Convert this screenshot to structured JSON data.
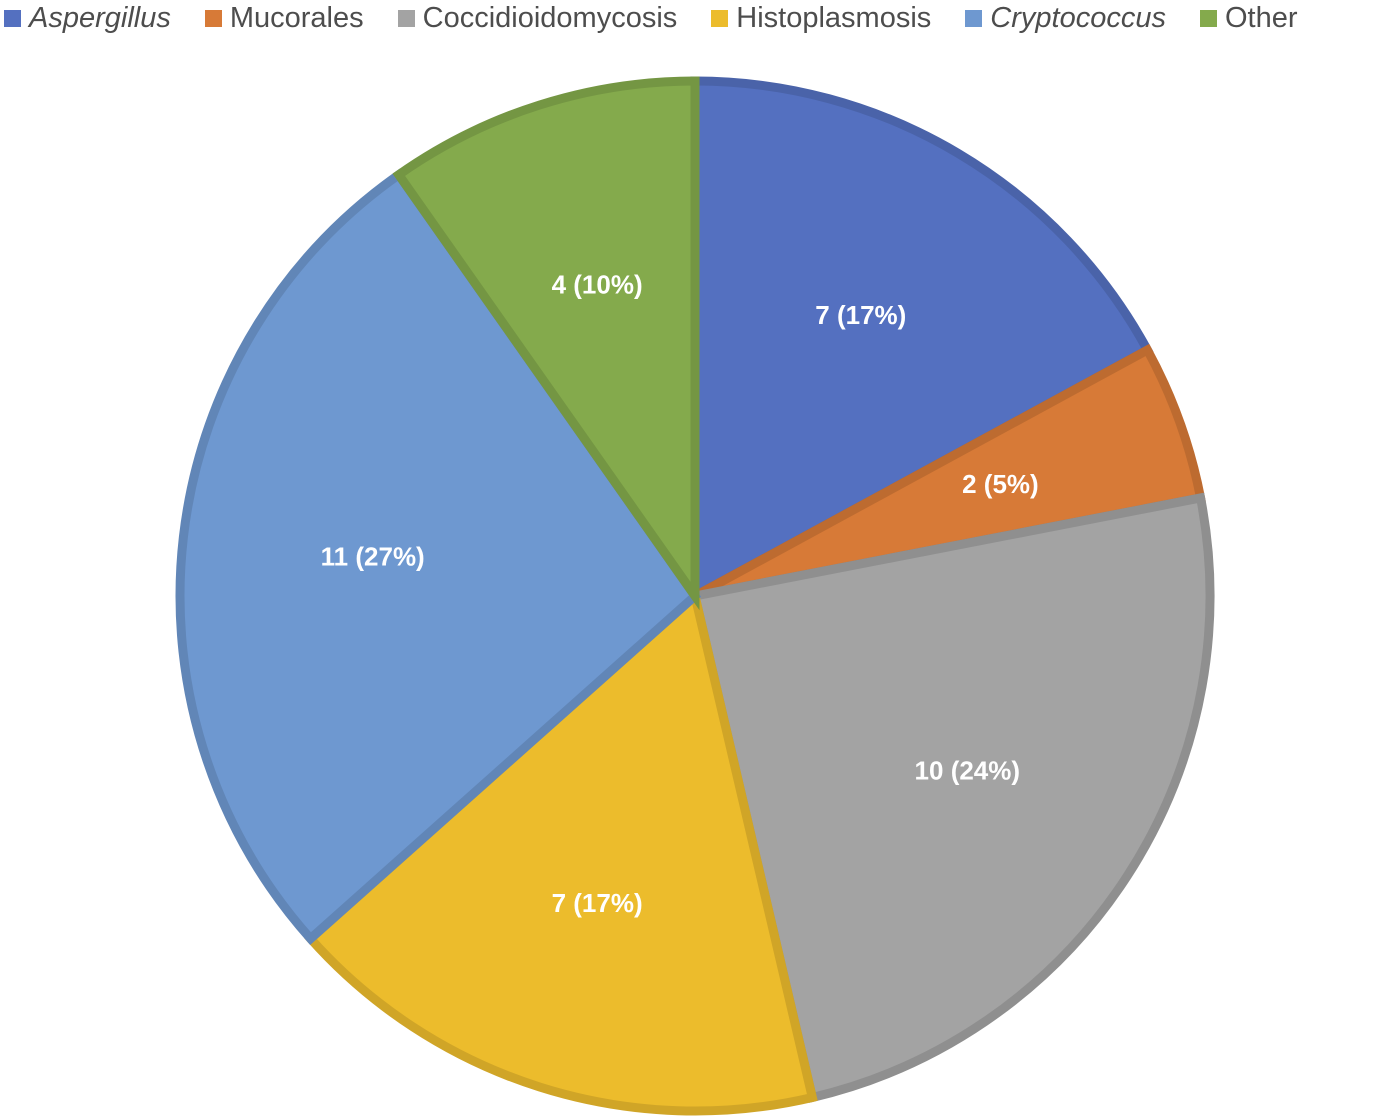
{
  "chart_data": {
    "type": "pie",
    "categories": [
      "Aspergillus",
      "Mucorales",
      "Coccidioidomycosis",
      "Histoplasmosis",
      "Cryptococcus",
      "Other"
    ],
    "values": [
      7,
      2,
      10,
      7,
      11,
      4
    ],
    "percentages": [
      17,
      5,
      24,
      17,
      27,
      10
    ],
    "data_labels": [
      "7 (17%)",
      "2 (5%)",
      "10 (24%)",
      "7 (17%)",
      "11 (27%)",
      "4 (10%)"
    ],
    "italic_categories": [
      "Aspergillus",
      "Cryptococcus"
    ],
    "colors": [
      "#5470c0",
      "#d77a37",
      "#a3a3a3",
      "#ecbc2c",
      "#6e98d0",
      "#84aa4c"
    ],
    "legend_position": "top"
  }
}
